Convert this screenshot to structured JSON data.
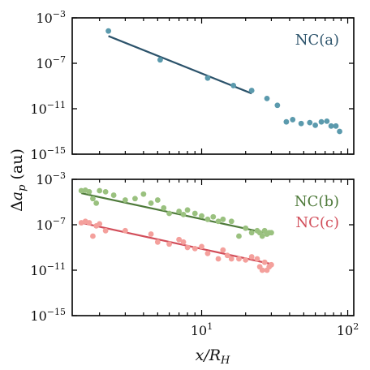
{
  "figure": {
    "ylabel": "Δa_p (au)",
    "xlabel": "x/R_H"
  },
  "chart_data": [
    {
      "type": "scatter",
      "xscale": "log",
      "yscale": "log",
      "xlim": [
        1.3,
        110
      ],
      "ylim": [
        1e-15,
        0.001
      ],
      "yticks": [
        {
          "value": 0.001,
          "exp": "−3"
        },
        {
          "value": 1e-07,
          "exp": "−7"
        },
        {
          "value": 1e-11,
          "exp": "−11"
        },
        {
          "value": 1e-15,
          "exp": "−15"
        }
      ],
      "show_xticklabels": false,
      "series": [
        {
          "name": "NC(a)",
          "color": "#5b9aad",
          "line_color": "#2c536b",
          "legend_position": "top-right",
          "points": [
            [
              2.3,
              7e-05
            ],
            [
              5.2,
              2e-07
            ],
            [
              11,
              5e-09
            ],
            [
              16.5,
              1.1e-09
            ],
            [
              22,
              4e-10
            ],
            [
              28,
              8e-11
            ],
            [
              33,
              2e-11
            ],
            [
              38,
              7e-13
            ],
            [
              42,
              1.1e-12
            ],
            [
              48,
              5e-13
            ],
            [
              55,
              6e-13
            ],
            [
              60,
              3.5e-13
            ],
            [
              66,
              7e-13
            ],
            [
              72,
              8e-13
            ],
            [
              77,
              3e-13
            ],
            [
              83,
              3e-13
            ],
            [
              88,
              1e-13
            ]
          ],
          "fit": {
            "x": [
              2.3,
              22
            ],
            "y": [
              2.5e-05,
              2.2e-10
            ]
          }
        }
      ]
    },
    {
      "type": "scatter",
      "xscale": "log",
      "yscale": "log",
      "xlim": [
        1.3,
        110
      ],
      "ylim": [
        1e-15,
        0.001
      ],
      "xticks": [
        {
          "value": 10,
          "exp": "1"
        },
        {
          "value": 100,
          "exp": "2"
        }
      ],
      "yticks": [
        {
          "value": 0.001,
          "exp": "−3"
        },
        {
          "value": 1e-07,
          "exp": "−7"
        },
        {
          "value": 1e-11,
          "exp": "−11"
        },
        {
          "value": 1e-15,
          "exp": "−15"
        }
      ],
      "series": [
        {
          "name": "NC(b)",
          "color": "#9ac17f",
          "line_color": "#4e7a3a",
          "legend_position": "top-right",
          "points": [
            [
              1.5,
              0.0001
            ],
            [
              1.6,
              0.00011
            ],
            [
              1.7,
              8e-05
            ],
            [
              1.8,
              2e-05
            ],
            [
              1.9,
              8e-06
            ],
            [
              2.0,
              0.0001
            ],
            [
              2.2,
              8e-05
            ],
            [
              2.5,
              4e-05
            ],
            [
              3.0,
              1.5e-05
            ],
            [
              3.5,
              2e-05
            ],
            [
              4.0,
              5e-05
            ],
            [
              4.5,
              8e-06
            ],
            [
              5.0,
              1.5e-05
            ],
            [
              5.5,
              3e-06
            ],
            [
              6.0,
              1e-06
            ],
            [
              7.0,
              1.5e-06
            ],
            [
              7.5,
              8e-07
            ],
            [
              8.0,
              2e-06
            ],
            [
              9.0,
              1e-06
            ],
            [
              10,
              6e-07
            ],
            [
              11,
              3e-07
            ],
            [
              12,
              5e-07
            ],
            [
              13,
              2e-07
            ],
            [
              14,
              3e-07
            ],
            [
              16,
              2e-07
            ],
            [
              18,
              1e-08
            ],
            [
              20,
              5e-08
            ],
            [
              22,
              2e-08
            ],
            [
              24,
              3e-08
            ],
            [
              25,
              2e-08
            ],
            [
              26,
              1e-08
            ],
            [
              27,
              3e-08
            ],
            [
              28,
              1.5e-08
            ],
            [
              29,
              2e-08
            ],
            [
              30,
              2e-08
            ]
          ],
          "fit": {
            "x": [
              1.5,
              30
            ],
            "y": [
              6e-05,
              1.5e-08
            ]
          }
        },
        {
          "name": "NC(c)",
          "color": "#f4a09c",
          "line_color": "#d24e5a",
          "legend_position": "top-right",
          "points": [
            [
              1.5,
              1.5e-07
            ],
            [
              1.6,
              2e-07
            ],
            [
              1.7,
              1.5e-07
            ],
            [
              1.8,
              1e-08
            ],
            [
              1.9,
              8e-08
            ],
            [
              2.0,
              1.2e-07
            ],
            [
              2.2,
              3e-08
            ],
            [
              3.0,
              3e-08
            ],
            [
              4.5,
              1.5e-08
            ],
            [
              5.0,
              3e-09
            ],
            [
              6.0,
              2e-09
            ],
            [
              7.0,
              5e-09
            ],
            [
              7.5,
              3e-09
            ],
            [
              8.0,
              1e-09
            ],
            [
              9.0,
              8e-10
            ],
            [
              10,
              1.2e-09
            ],
            [
              11,
              3e-10
            ],
            [
              13,
              1e-10
            ],
            [
              14,
              6e-10
            ],
            [
              15,
              2e-10
            ],
            [
              16,
              1e-10
            ],
            [
              18,
              1e-10
            ],
            [
              20,
              8e-11
            ],
            [
              22,
              1.5e-10
            ],
            [
              24,
              1e-10
            ],
            [
              25,
              2e-11
            ],
            [
              26,
              1e-11
            ],
            [
              27,
              5e-11
            ],
            [
              28,
              1e-11
            ],
            [
              29,
              2e-11
            ],
            [
              30,
              3e-11
            ]
          ],
          "fit": {
            "x": [
              1.5,
              30
            ],
            "y": [
              1.5e-07,
              3.5e-11
            ]
          }
        }
      ]
    }
  ]
}
